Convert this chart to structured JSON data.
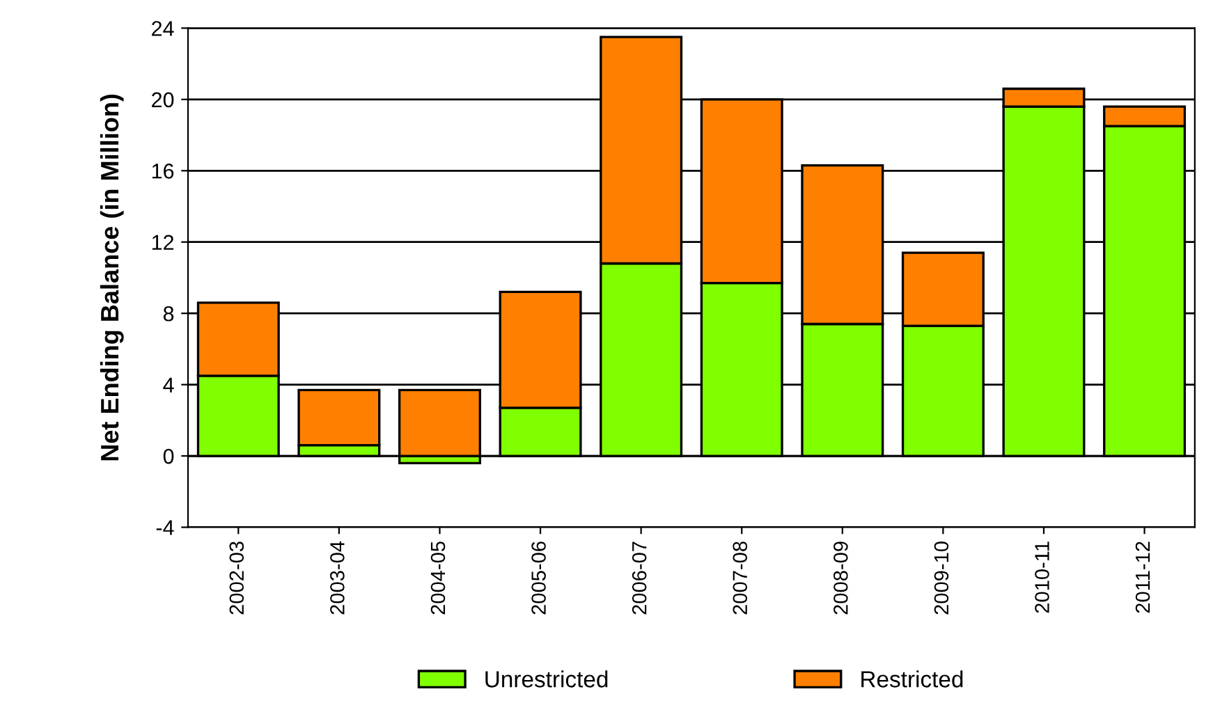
{
  "chart_data": {
    "type": "bar",
    "stacked": true,
    "ylabel": "Net Ending Balance (in Million)",
    "categories": [
      "2002-03",
      "2003-04",
      "2004-05",
      "2005-06",
      "2006-07",
      "2007-08",
      "2008-09",
      "2009-10",
      "2010-11",
      "2011-12"
    ],
    "series": [
      {
        "name": "Unrestricted",
        "color": "#80ff00",
        "values": [
          4.5,
          0.6,
          -0.4,
          2.7,
          10.8,
          9.7,
          7.4,
          7.3,
          19.6,
          18.5
        ]
      },
      {
        "name": "Restricted",
        "color": "#ff8000",
        "values": [
          4.1,
          3.1,
          3.7,
          6.5,
          12.7,
          10.3,
          8.9,
          4.1,
          1.0,
          1.1
        ]
      }
    ],
    "ylim": [
      -4,
      24
    ],
    "yticks": [
      -4,
      0,
      4,
      8,
      12,
      16,
      20,
      24
    ],
    "grid": "y",
    "legend": "bottom"
  }
}
